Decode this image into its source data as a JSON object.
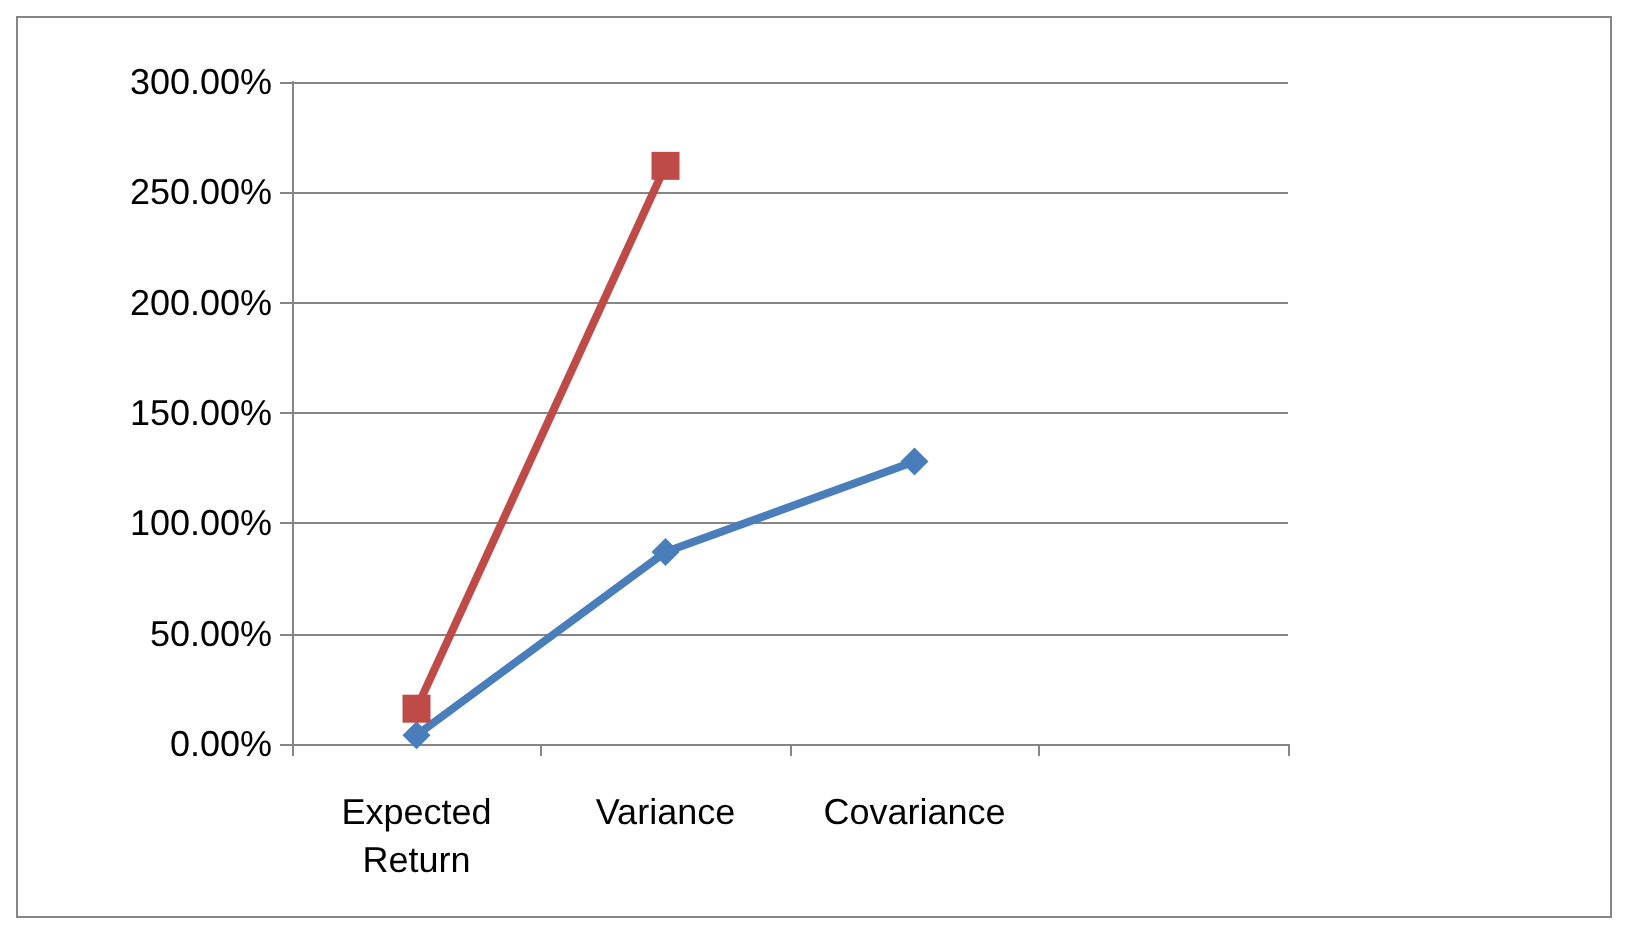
{
  "chart_data": {
    "type": "line",
    "categories": [
      "Expected\nReturn",
      "Variance",
      "Covariance",
      null
    ],
    "series": [
      {
        "color": "#4a7ebb",
        "marker": "diamond",
        "values": [
          4,
          87,
          128,
          null
        ]
      },
      {
        "color": "#be4b48",
        "marker": "square",
        "values": [
          16,
          262,
          null,
          null
        ]
      }
    ],
    "ylim": [
      0,
      300
    ],
    "yticks": [
      {
        "value": 0,
        "label": "0.00%"
      },
      {
        "value": 50,
        "label": "50.00%"
      },
      {
        "value": 100,
        "label": "100.00%"
      },
      {
        "value": 150,
        "label": "150.00%"
      },
      {
        "value": 200,
        "label": "200.00%"
      },
      {
        "value": 250,
        "label": "250.00%"
      },
      {
        "value": 300,
        "label": "300.00%"
      }
    ],
    "grid": "y",
    "line_style": "solid"
  }
}
